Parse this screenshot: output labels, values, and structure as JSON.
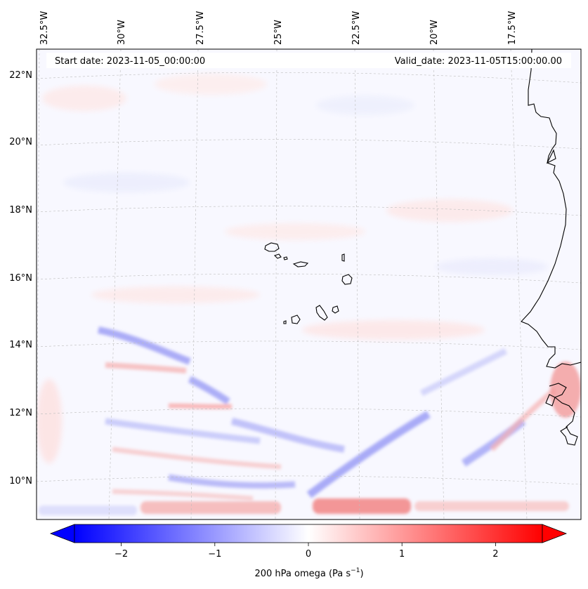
{
  "map": {
    "start_date_label": "Start date: 2023-11-05_00:00:00",
    "valid_date_label": "Valid_date: 2023-11-05T15:00:00.00",
    "longitude_labels": [
      "32.5°W",
      "30°W",
      "27.5°W",
      "25°W",
      "22.5°W",
      "20°W",
      "17.5°W"
    ],
    "latitude_labels": [
      "22°N",
      "20°N",
      "18°N",
      "16°N",
      "14°N",
      "12°N",
      "10°N"
    ],
    "gridlines": true,
    "field": "200 hPa omega",
    "colormap": "bwr",
    "colors": {
      "negative": "#0000ff",
      "zero": "#ffffff",
      "positive": "#ff0000",
      "coastline": "#000000"
    }
  },
  "colorbar": {
    "label": "200 hPa omega (Pa s",
    "label_unit_exponent": "−1",
    "label_close": ")",
    "tick_labels": [
      "−2",
      "−1",
      "0",
      "1",
      "2"
    ],
    "tick_values": [
      -2,
      -1,
      0,
      1,
      2
    ],
    "range": [
      -2.5,
      2.5
    ],
    "extend": "both"
  }
}
